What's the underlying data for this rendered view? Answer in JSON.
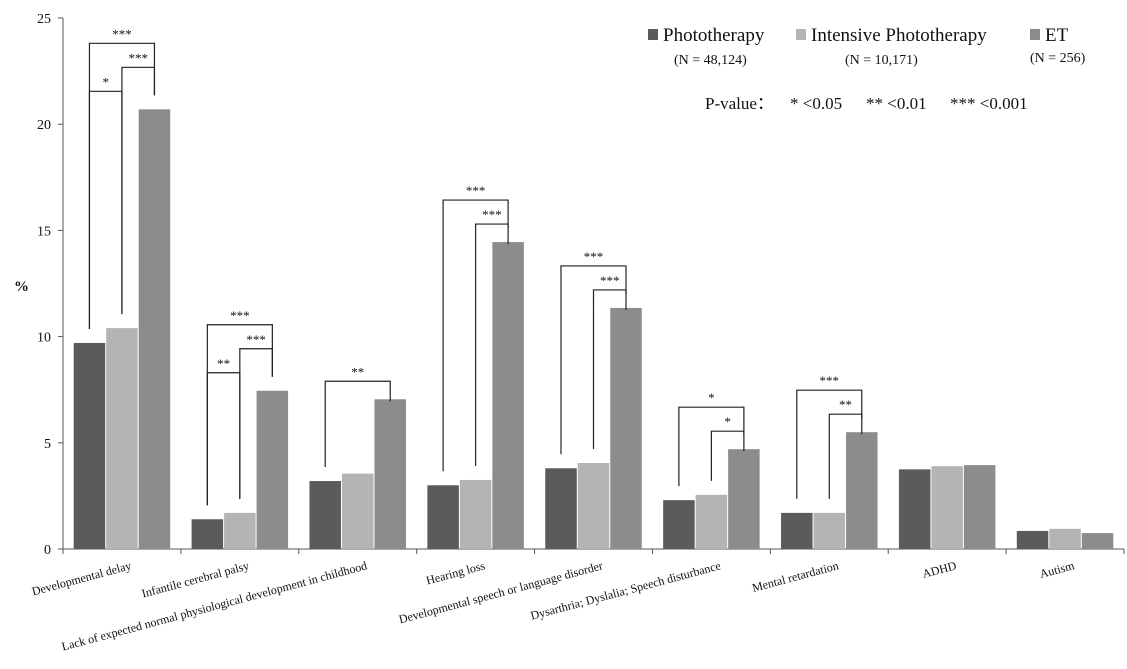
{
  "chart_data": {
    "type": "bar",
    "ylabel": "%",
    "ylim": [
      0,
      25
    ],
    "yticks": [
      "0",
      "5",
      "10",
      "15",
      "20",
      "25"
    ],
    "grid": false,
    "legend_position": "top-right",
    "categories": [
      "Developmental delay",
      "Infantile cerebral palsy",
      "Lack of expected normal physiological development in childhood",
      "Hearing loss",
      "Developmental speech or language disorder",
      "Dysarthria; Dyslalia; Speech disturbance",
      "Mental retardation",
      "ADHD",
      "Autism"
    ],
    "series": [
      {
        "name": "Phototherapy",
        "n_label": "(N = 48,124)",
        "color": "#5b5b5b",
        "values": [
          9.7,
          1.4,
          3.2,
          3.0,
          3.8,
          2.3,
          1.7,
          3.75,
          0.85
        ]
      },
      {
        "name": "Intensive Phototherapy",
        "n_label": "(N = 10,171)",
        "color": "#b4b4b4",
        "values": [
          10.4,
          1.7,
          3.55,
          3.25,
          4.05,
          2.55,
          1.7,
          3.9,
          0.95
        ]
      },
      {
        "name": "ET",
        "n_label": "(N = 256)",
        "color": "#8c8c8c",
        "values": [
          20.7,
          7.45,
          7.05,
          14.45,
          11.35,
          4.7,
          5.5,
          3.95,
          0.75
        ]
      }
    ],
    "significance_legend": {
      "title": "P-value：",
      "items": [
        "* <0.05",
        "** <0.01",
        "*** <0.001"
      ]
    },
    "significance": [
      {
        "category": 0,
        "from": 0,
        "to": 1,
        "label": "*"
      },
      {
        "category": 0,
        "from": 1,
        "to": 2,
        "label": "***"
      },
      {
        "category": 0,
        "from": 0,
        "to": 2,
        "label": "***"
      },
      {
        "category": 1,
        "from": 0,
        "to": 1,
        "label": "**"
      },
      {
        "category": 1,
        "from": 1,
        "to": 2,
        "label": "***"
      },
      {
        "category": 1,
        "from": 0,
        "to": 2,
        "label": "***"
      },
      {
        "category": 2,
        "from": 0,
        "to": 2,
        "label": "**"
      },
      {
        "category": 3,
        "from": 1,
        "to": 2,
        "label": "***"
      },
      {
        "category": 3,
        "from": 0,
        "to": 2,
        "label": "***"
      },
      {
        "category": 4,
        "from": 1,
        "to": 2,
        "label": "***"
      },
      {
        "category": 4,
        "from": 0,
        "to": 2,
        "label": "***"
      },
      {
        "category": 5,
        "from": 1,
        "to": 2,
        "label": "*"
      },
      {
        "category": 5,
        "from": 0,
        "to": 2,
        "label": "*"
      },
      {
        "category": 6,
        "from": 1,
        "to": 2,
        "label": "**"
      },
      {
        "category": 6,
        "from": 0,
        "to": 2,
        "label": "***"
      }
    ]
  }
}
